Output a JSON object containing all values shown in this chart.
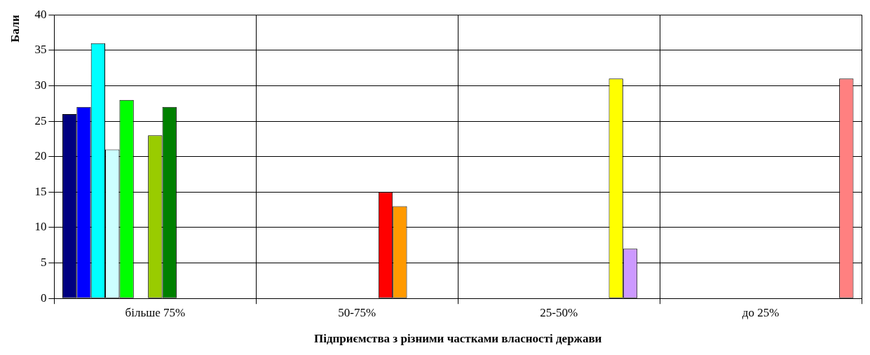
{
  "chart_data": {
    "type": "bar",
    "xlabel": "Підприємства з різними частками власності держави",
    "ylabel": "Бали",
    "categories": [
      "більше 75%",
      "50-75%",
      "25-50%",
      "до 25%"
    ],
    "series": [
      {
        "color": "#000080",
        "values": [
          26,
          null,
          null,
          null
        ]
      },
      {
        "color": "#0000ff",
        "values": [
          27,
          null,
          null,
          null
        ]
      },
      {
        "color": "#00ffff",
        "values": [
          36,
          null,
          null,
          null
        ]
      },
      {
        "color": "#ccffff",
        "values": [
          21,
          null,
          null,
          null
        ]
      },
      {
        "color": "#00ff00",
        "values": [
          28,
          null,
          null,
          null
        ]
      },
      {
        "values": [
          null,
          null,
          null,
          null
        ]
      },
      {
        "color": "#99cc00",
        "values": [
          23,
          null,
          null,
          null
        ]
      },
      {
        "color": "#008000",
        "values": [
          27,
          null,
          null,
          null
        ]
      },
      {
        "color": "#ff0000",
        "values": [
          null,
          15,
          null,
          null
        ]
      },
      {
        "color": "#ff9900",
        "values": [
          null,
          13,
          null,
          null
        ]
      },
      {
        "color": "#ffff00",
        "values": [
          null,
          null,
          31,
          null
        ]
      },
      {
        "color": "#cc99ff",
        "values": [
          null,
          null,
          7,
          null
        ]
      },
      {
        "color": "#ff8080",
        "values": [
          null,
          null,
          null,
          31
        ]
      }
    ],
    "ylim": [
      0,
      40
    ],
    "yticks": [
      0,
      5,
      10,
      15,
      20,
      25,
      30,
      35,
      40
    ],
    "grid": true,
    "legend": false
  }
}
